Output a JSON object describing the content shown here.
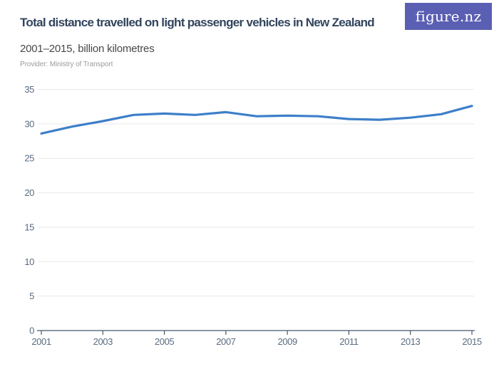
{
  "header": {
    "title": "Total distance travelled on light passenger vehicles in New Zealand",
    "subtitle": "2001–2015, billion kilometres",
    "provider": "Provider: Ministry of Transport",
    "logo_text": "figure.nz"
  },
  "colors": {
    "line": "#3d7fc9",
    "title_text": "#32455e",
    "subtitle_text": "#484848",
    "provider_text": "#9b9b9b",
    "axis_label": "#5a6c80",
    "axis_line": "#46586c",
    "gridline": "#e8e8e8",
    "logo_bg": "#5a5fb3",
    "logo_text": "#ffffff"
  },
  "chart_data": {
    "type": "line",
    "title": "Total distance travelled on light passenger vehicles in New Zealand",
    "subtitle": "2001–2015, billion kilometres",
    "xlabel": "",
    "ylabel": "billion kilometres",
    "x": [
      2001,
      2002,
      2003,
      2004,
      2005,
      2006,
      2007,
      2008,
      2009,
      2010,
      2011,
      2012,
      2013,
      2014,
      2015
    ],
    "series": [
      {
        "name": "Total distance travelled on light passenger vehicles",
        "values": [
          28.6,
          29.6,
          30.4,
          31.3,
          31.5,
          31.3,
          31.7,
          31.1,
          31.2,
          31.1,
          30.7,
          30.6,
          30.9,
          31.4,
          32.6
        ]
      }
    ],
    "ylim": [
      0,
      35
    ],
    "y_ticks": [
      0,
      5,
      10,
      15,
      20,
      25,
      30,
      35
    ],
    "x_ticks": [
      2001,
      2003,
      2005,
      2007,
      2009,
      2011,
      2013,
      2015
    ],
    "grid": "horizontal-only",
    "legend": "none"
  }
}
